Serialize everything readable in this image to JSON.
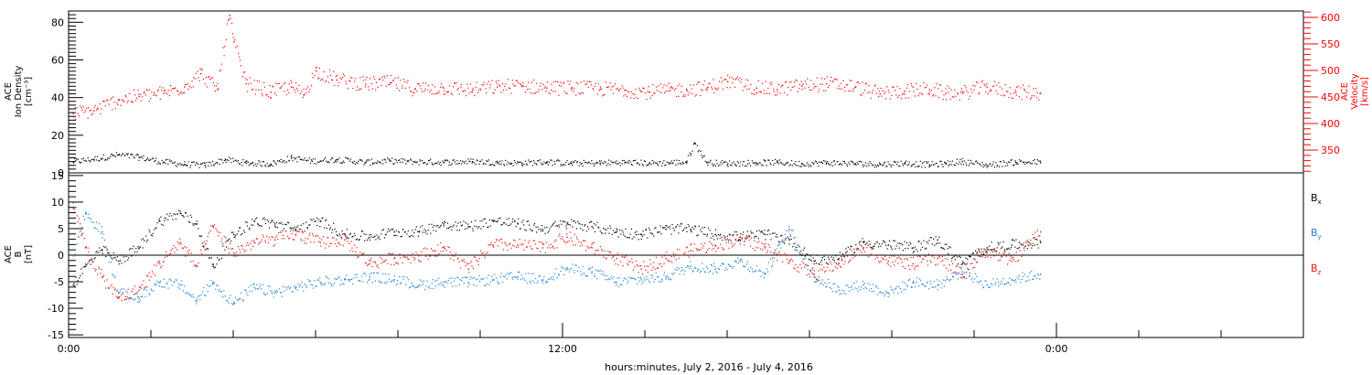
{
  "chart_data": [
    {
      "type": "scatter",
      "panel": "plasma",
      "left_axis_title": [
        "ACE",
        "Ion Density",
        "[cm⁻³]"
      ],
      "right_axis_title": [
        "ACE",
        "Velocity",
        "[km/s]"
      ],
      "left_ylim": [
        0,
        86
      ],
      "left_ticks": [
        "0",
        "20",
        "40",
        "60",
        "80"
      ],
      "right_ylim": [
        307,
        612
      ],
      "right_ticks": [
        "350",
        "400",
        "450",
        "500",
        "550",
        "600"
      ],
      "series": [
        {
          "name": "Ion Density",
          "axis": "left",
          "color": "#000000",
          "points": [
            [
              0.1,
              6.2
            ],
            [
              0.6,
              7.5
            ],
            [
              1.2,
              9.8
            ],
            [
              1.7,
              8.5
            ],
            [
              2.3,
              6.0
            ],
            [
              2.8,
              4.8
            ],
            [
              3.3,
              4.2
            ],
            [
              3.8,
              7.2
            ],
            [
              4.3,
              5.5
            ],
            [
              4.9,
              5.0
            ],
            [
              5.4,
              8.1
            ],
            [
              5.9,
              6.5
            ],
            [
              6.5,
              7.4
            ],
            [
              7.2,
              5.8
            ],
            [
              7.8,
              6.6
            ],
            [
              8.4,
              6.1
            ],
            [
              9.1,
              5.9
            ],
            [
              9.8,
              6.3
            ],
            [
              10.4,
              5.7
            ],
            [
              11.0,
              5.5
            ],
            [
              11.6,
              6.0
            ],
            [
              12.2,
              5.3
            ],
            [
              12.9,
              5.5
            ],
            [
              13.5,
              5.8
            ],
            [
              14.1,
              5.4
            ],
            [
              14.6,
              5.6
            ],
            [
              15.0,
              6.0
            ],
            [
              15.2,
              16.0
            ],
            [
              15.5,
              5.7
            ],
            [
              16.0,
              5.2
            ],
            [
              16.7,
              5.6
            ],
            [
              17.2,
              5.8
            ],
            [
              17.8,
              5.0
            ],
            [
              18.4,
              5.6
            ],
            [
              19.1,
              5.2
            ],
            [
              19.7,
              4.8
            ],
            [
              20.3,
              5.4
            ],
            [
              20.9,
              4.6
            ],
            [
              21.3,
              5.1
            ],
            [
              21.7,
              6.4
            ],
            [
              22.3,
              4.3
            ],
            [
              23.0,
              6.0
            ],
            [
              23.6,
              5.8
            ]
          ]
        },
        {
          "name": "Velocity",
          "axis": "right",
          "color": "#ff0000",
          "points": [
            [
              0.1,
              420
            ],
            [
              0.6,
              425
            ],
            [
              1.2,
              445
            ],
            [
              1.7,
              452
            ],
            [
              2.3,
              458
            ],
            [
              2.8,
              470
            ],
            [
              3.2,
              495
            ],
            [
              3.6,
              465
            ],
            [
              3.9,
              605
            ],
            [
              4.0,
              555
            ],
            [
              4.3,
              476
            ],
            [
              4.9,
              460
            ],
            [
              5.4,
              470
            ],
            [
              5.7,
              455
            ],
            [
              6.0,
              500
            ],
            [
              6.5,
              483
            ],
            [
              7.2,
              475
            ],
            [
              7.8,
              478
            ],
            [
              8.4,
              466
            ],
            [
              9.1,
              468
            ],
            [
              9.8,
              464
            ],
            [
              10.4,
              470
            ],
            [
              11.0,
              472
            ],
            [
              11.6,
              468
            ],
            [
              12.2,
              468
            ],
            [
              12.9,
              466
            ],
            [
              13.5,
              464
            ],
            [
              14.1,
              460
            ],
            [
              14.6,
              463
            ],
            [
              15.0,
              465
            ],
            [
              15.5,
              468
            ],
            [
              16.0,
              480
            ],
            [
              16.7,
              468
            ],
            [
              17.2,
              465
            ],
            [
              17.8,
              472
            ],
            [
              18.4,
              476
            ],
            [
              19.1,
              470
            ],
            [
              19.7,
              457
            ],
            [
              20.3,
              462
            ],
            [
              20.9,
              465
            ],
            [
              21.3,
              458
            ],
            [
              21.7,
              458
            ],
            [
              22.3,
              470
            ],
            [
              23.0,
              460
            ],
            [
              23.6,
              458
            ]
          ]
        }
      ]
    },
    {
      "type": "scatter",
      "panel": "magnetic field",
      "left_axis_title": [
        "ACE",
        "B",
        "[nT]"
      ],
      "ylim": [
        -15.5,
        15.5
      ],
      "left_ticks": [
        "-15",
        "-10",
        "-5",
        "0",
        "5",
        "10",
        "15"
      ],
      "xlabel": "hours:minutes, July  2, 2016 - July  4, 2016",
      "x_ticks": [
        "0:00",
        "12:00",
        "0:00"
      ],
      "x_tick_hours": [
        0,
        12,
        24
      ],
      "xlim_hours": [
        0,
        30
      ],
      "series": [
        {
          "name": "Bx",
          "label_main": "B",
          "label_sub": "x",
          "color": "#000000",
          "points": [
            [
              0.1,
              -5.5
            ],
            [
              0.4,
              -2.0
            ],
            [
              0.8,
              1.0
            ],
            [
              1.2,
              -1.0
            ],
            [
              1.7,
              1.5
            ],
            [
              2.2,
              6.5
            ],
            [
              2.7,
              8.0
            ],
            [
              3.1,
              6.0
            ],
            [
              3.5,
              -2.0
            ],
            [
              4.0,
              4.0
            ],
            [
              4.5,
              6.5
            ],
            [
              5.0,
              6.0
            ],
            [
              5.5,
              5.0
            ],
            [
              6.1,
              6.5
            ],
            [
              6.7,
              4.0
            ],
            [
              7.3,
              3.5
            ],
            [
              7.9,
              4.5
            ],
            [
              8.5,
              4.5
            ],
            [
              9.1,
              6.0
            ],
            [
              9.7,
              5.5
            ],
            [
              10.3,
              6.5
            ],
            [
              10.9,
              6.0
            ],
            [
              11.5,
              5.0
            ],
            [
              12.1,
              6.0
            ],
            [
              12.7,
              5.5
            ],
            [
              13.3,
              4.5
            ],
            [
              13.9,
              4.0
            ],
            [
              14.5,
              5.0
            ],
            [
              15.1,
              5.0
            ],
            [
              15.7,
              4.0
            ],
            [
              16.3,
              3.5
            ],
            [
              16.9,
              4.0
            ],
            [
              17.5,
              3.0
            ],
            [
              18.1,
              -1.0
            ],
            [
              18.7,
              -0.5
            ],
            [
              19.3,
              2.5
            ],
            [
              19.9,
              2.0
            ],
            [
              20.5,
              1.5
            ],
            [
              21.1,
              3.0
            ],
            [
              21.7,
              -1.5
            ],
            [
              22.3,
              1.5
            ],
            [
              22.9,
              2.0
            ],
            [
              23.6,
              2.5
            ]
          ]
        },
        {
          "name": "By",
          "label_main": "B",
          "label_sub": "y",
          "color": "#1e7fd9",
          "points": [
            [
              0.1,
              0.0
            ],
            [
              0.4,
              8.0
            ],
            [
              0.8,
              4.5
            ],
            [
              1.2,
              -7.0
            ],
            [
              1.7,
              -8.0
            ],
            [
              2.2,
              -5.0
            ],
            [
              2.7,
              -5.5
            ],
            [
              3.1,
              -8.5
            ],
            [
              3.5,
              -5.0
            ],
            [
              4.0,
              -9.0
            ],
            [
              4.5,
              -6.0
            ],
            [
              5.0,
              -7.0
            ],
            [
              5.5,
              -6.0
            ],
            [
              6.1,
              -5.0
            ],
            [
              6.7,
              -4.5
            ],
            [
              7.3,
              -4.0
            ],
            [
              7.9,
              -4.5
            ],
            [
              8.5,
              -5.5
            ],
            [
              9.1,
              -5.0
            ],
            [
              9.7,
              -5.0
            ],
            [
              10.3,
              -4.5
            ],
            [
              10.9,
              -4.0
            ],
            [
              11.5,
              -4.5
            ],
            [
              12.1,
              -2.5
            ],
            [
              12.7,
              -3.0
            ],
            [
              13.3,
              -5.0
            ],
            [
              13.9,
              -4.5
            ],
            [
              14.5,
              -4.0
            ],
            [
              15.1,
              -2.0
            ],
            [
              15.7,
              -2.5
            ],
            [
              16.3,
              -1.0
            ],
            [
              16.9,
              -3.5
            ],
            [
              17.5,
              5.0
            ],
            [
              18.1,
              -4.0
            ],
            [
              18.7,
              -6.5
            ],
            [
              19.3,
              -5.5
            ],
            [
              19.9,
              -7.0
            ],
            [
              20.5,
              -5.0
            ],
            [
              21.1,
              -5.5
            ],
            [
              21.7,
              -3.0
            ],
            [
              22.3,
              -5.5
            ],
            [
              22.9,
              -4.5
            ],
            [
              23.6,
              -3.5
            ]
          ]
        },
        {
          "name": "Bz",
          "label_main": "B",
          "label_sub": "z",
          "color": "#e8120c",
          "points": [
            [
              0.1,
              10.0
            ],
            [
              0.4,
              1.5
            ],
            [
              0.8,
              -4.0
            ],
            [
              1.2,
              -8.0
            ],
            [
              1.7,
              -6.5
            ],
            [
              2.2,
              -1.5
            ],
            [
              2.7,
              2.5
            ],
            [
              3.1,
              -2.0
            ],
            [
              3.5,
              5.5
            ],
            [
              4.0,
              0.5
            ],
            [
              4.5,
              2.5
            ],
            [
              5.0,
              3.0
            ],
            [
              5.5,
              4.0
            ],
            [
              6.1,
              2.5
            ],
            [
              6.7,
              3.0
            ],
            [
              7.3,
              -1.5
            ],
            [
              7.9,
              -0.5
            ],
            [
              8.5,
              0.0
            ],
            [
              9.1,
              1.5
            ],
            [
              9.7,
              -2.5
            ],
            [
              10.3,
              2.0
            ],
            [
              10.9,
              2.0
            ],
            [
              11.5,
              1.5
            ],
            [
              12.1,
              3.5
            ],
            [
              12.7,
              1.5
            ],
            [
              13.3,
              -0.5
            ],
            [
              13.9,
              -2.5
            ],
            [
              14.5,
              -0.5
            ],
            [
              15.1,
              1.0
            ],
            [
              15.7,
              2.0
            ],
            [
              16.3,
              3.0
            ],
            [
              16.9,
              1.5
            ],
            [
              17.5,
              -1.0
            ],
            [
              18.1,
              -3.5
            ],
            [
              18.7,
              -1.5
            ],
            [
              19.3,
              1.5
            ],
            [
              19.9,
              -1.0
            ],
            [
              20.5,
              -1.5
            ],
            [
              21.1,
              -0.5
            ],
            [
              21.7,
              -3.5
            ],
            [
              22.3,
              1.0
            ],
            [
              22.9,
              -1.0
            ],
            [
              23.6,
              4.5
            ]
          ]
        }
      ]
    }
  ]
}
